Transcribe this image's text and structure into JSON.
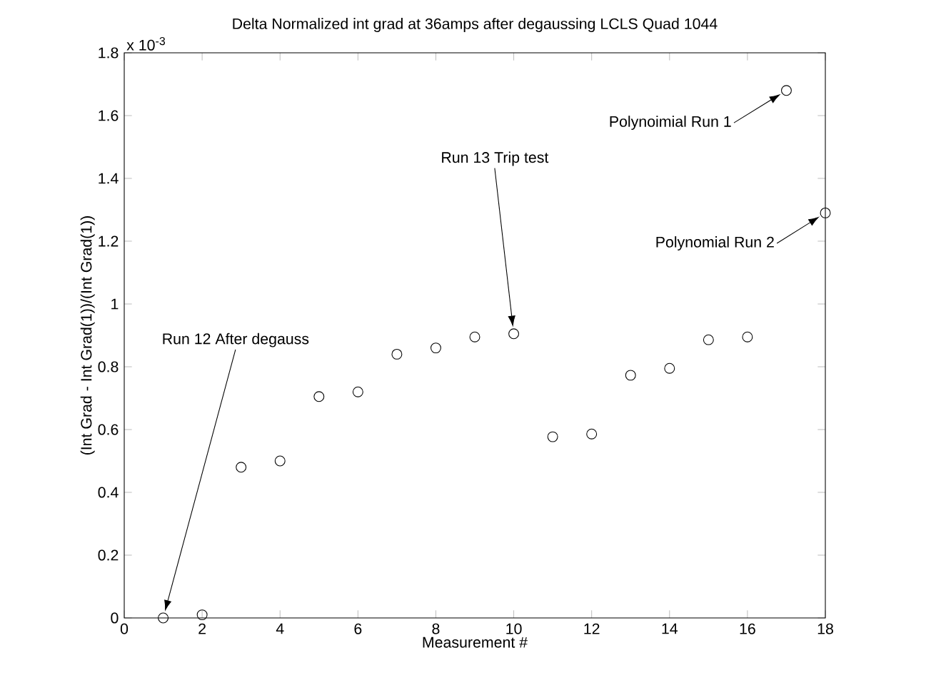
{
  "chart_data": {
    "type": "scatter",
    "title": "Delta Normalized int grad at 36amps after degaussing LCLS Quad 1044",
    "xlabel": "Measurement #",
    "ylabel": "(Int Grad - Int Grad(1))/(Int Grad(1))",
    "x": [
      1,
      2,
      3,
      4,
      5,
      6,
      7,
      8,
      9,
      10,
      11,
      12,
      13,
      14,
      15,
      16,
      17,
      18
    ],
    "series": [
      {
        "color": "#000000",
        "values": [
          0,
          0.01,
          0.48,
          0.5,
          0.705,
          0.72,
          0.84,
          0.86,
          0.895,
          0.905,
          0.577,
          0.586,
          0.773,
          0.795,
          0.886,
          0.895,
          1.68,
          1.29
        ]
      }
    ],
    "marker": "circle",
    "xlim": [
      0,
      18
    ],
    "ylim": [
      0,
      1.8
    ],
    "xticks": [
      0,
      2,
      4,
      6,
      8,
      10,
      12,
      14,
      16,
      18
    ],
    "yticks": [
      0,
      0.2,
      0.4,
      0.6,
      0.8,
      1,
      1.2,
      1.4,
      1.6,
      1.8
    ],
    "annotations": [
      "x 10$^{-3}$",
      "Run 12 After degauss",
      "Run 13 Trip test",
      "Polynoimial Run 1",
      "Polynomial Run 2"
    ]
  }
}
